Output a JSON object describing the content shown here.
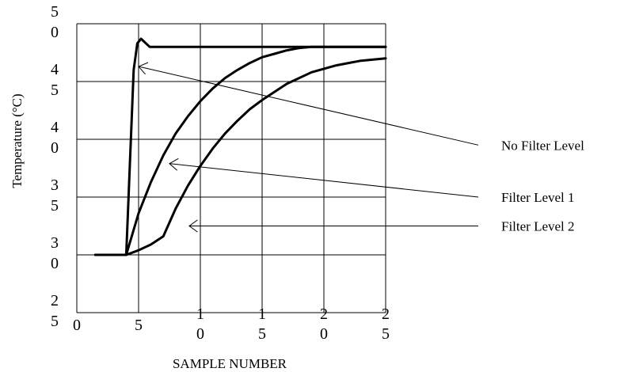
{
  "chart_data": {
    "type": "line",
    "xlabel": "SAMPLE NUMBER",
    "ylabel": "Temperature (°C)",
    "xlim": [
      0,
      25
    ],
    "ylim": [
      25,
      50
    ],
    "x_ticks": [
      {
        "value": 0,
        "lines": [
          "0"
        ]
      },
      {
        "value": 5,
        "lines": [
          "5"
        ]
      },
      {
        "value": 10,
        "lines": [
          "1",
          "0"
        ]
      },
      {
        "value": 15,
        "lines": [
          "1",
          "5"
        ]
      },
      {
        "value": 20,
        "lines": [
          "2",
          "0"
        ]
      },
      {
        "value": 25,
        "lines": [
          "2",
          "5"
        ]
      }
    ],
    "y_ticks": [
      {
        "value": 50,
        "lines": [
          "5",
          "0"
        ]
      },
      {
        "value": 45,
        "lines": [
          "4",
          "5"
        ]
      },
      {
        "value": 40,
        "lines": [
          "4",
          "0"
        ]
      },
      {
        "value": 35,
        "lines": [
          "3",
          "5"
        ]
      },
      {
        "value": 30,
        "lines": [
          "3",
          "0"
        ]
      },
      {
        "value": 25,
        "lines": [
          "2",
          "5"
        ]
      }
    ],
    "grid": true,
    "series": [
      {
        "name": "No Filter Level",
        "x": [
          1.5,
          3.7,
          4.0,
          4.3,
          4.6,
          4.9,
          5.2,
          5.5,
          5.9,
          7,
          10,
          15,
          20,
          25
        ],
        "y": [
          30,
          30,
          30,
          38,
          46,
          48.3,
          48.7,
          48.4,
          48.0,
          48.0,
          48.0,
          48.0,
          48.0,
          48.0
        ],
        "arrow_to": [
          5.0,
          46.3
        ],
        "label_at": [
          25,
          39.5
        ]
      },
      {
        "name": "Filter Level 1",
        "x": [
          1.5,
          3.7,
          4.0,
          5,
          6,
          7,
          8,
          9,
          10,
          11,
          12,
          13,
          14,
          15,
          16,
          17,
          18,
          19,
          20,
          21,
          22,
          25
        ],
        "y": [
          30,
          30,
          30,
          33.6,
          36.3,
          38.6,
          40.5,
          42.0,
          43.3,
          44.4,
          45.3,
          46.0,
          46.6,
          47.1,
          47.4,
          47.7,
          47.9,
          48.0,
          48.0,
          48.0,
          48.0,
          48.0
        ],
        "arrow_to": [
          7.5,
          37.9
        ],
        "label_at": [
          25,
          35
        ]
      },
      {
        "name": "Filter Level 2",
        "x": [
          1.5,
          3.7,
          4.0,
          5,
          6,
          7,
          8,
          9,
          10,
          11,
          12,
          13,
          14,
          15,
          16,
          17,
          18,
          19,
          20,
          21,
          22,
          23,
          24,
          25
        ],
        "y": [
          30,
          30,
          30,
          30.4,
          30.9,
          31.6,
          34.0,
          36.0,
          37.7,
          39.2,
          40.5,
          41.6,
          42.6,
          43.4,
          44.1,
          44.8,
          45.3,
          45.8,
          46.1,
          46.4,
          46.6,
          46.8,
          46.9,
          47.0
        ],
        "arrow_to": [
          9.1,
          32.5
        ],
        "label_at": [
          25,
          32.5
        ]
      }
    ]
  }
}
